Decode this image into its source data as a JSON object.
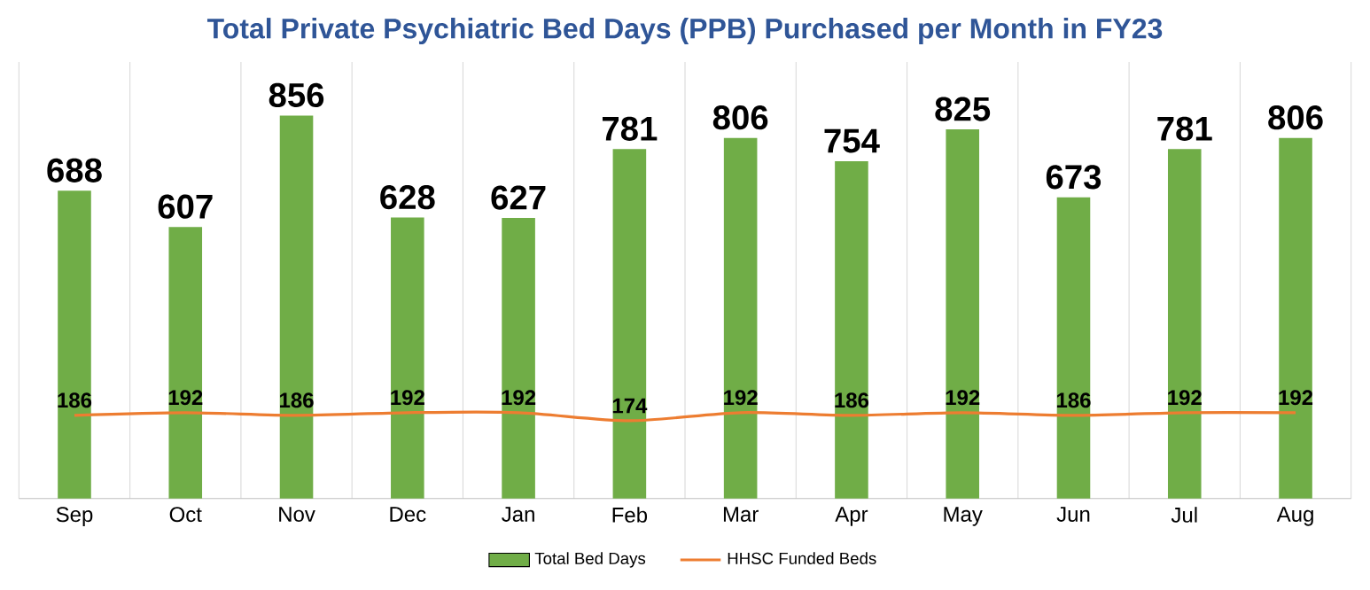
{
  "chart_data": {
    "type": "bar",
    "title": "Total Private Psychiatric Bed Days (PPB) Purchased per Month in FY23",
    "categories": [
      "Sep",
      "Oct",
      "Nov",
      "Dec",
      "Jan",
      "Feb",
      "Mar",
      "Apr",
      "May",
      "Jun",
      "Jul",
      "Aug"
    ],
    "series": [
      {
        "name": "Total Bed Days",
        "color": "#70ad47",
        "values": [
          688,
          607,
          856,
          628,
          627,
          781,
          806,
          754,
          825,
          673,
          781,
          806
        ]
      },
      {
        "name": "HHSC Funded Beds",
        "type": "line",
        "color": "#ed7d31",
        "values": [
          186,
          192,
          186,
          192,
          192,
          174,
          192,
          186,
          192,
          186,
          192,
          192
        ]
      }
    ],
    "data_labels": true,
    "grid": "x",
    "legend": "bottom",
    "tick_labels": "x",
    "marker": "none"
  }
}
